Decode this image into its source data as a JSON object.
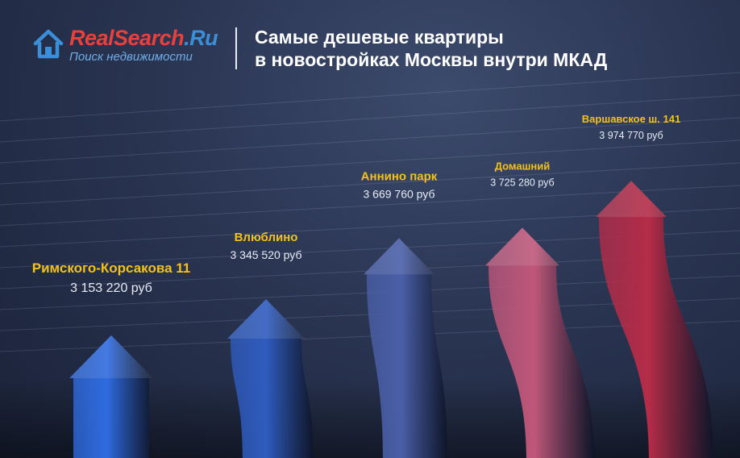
{
  "brand": {
    "name_part1": "RealSearch",
    "name_part2": ".Ru",
    "tagline": "Поиск недвижимости",
    "icon": "house-icon"
  },
  "header": {
    "title_line1": "Самые дешевые квартиры",
    "title_line2": "в новостройках Москвы внутри МКАД"
  },
  "chart_data": {
    "type": "bar",
    "title": "Самые дешевые квартиры в новостройках Москвы внутри МКАД",
    "categories": [
      "Римского-Корсакова 11",
      "Влюблино",
      "Аннино парк",
      "Домашний",
      "Варшавское ш. 141"
    ],
    "values": [
      3153220,
      3345520,
      3669760,
      3725280,
      3974770
    ],
    "value_labels": [
      "3 153 220 руб",
      "3 345 520 руб",
      "3 669 760 руб",
      "3 725 280 руб",
      "3 974 770 руб"
    ],
    "colors": [
      "#2f6be0",
      "#2f5cbf",
      "#4a5fa8",
      "#c0577a",
      "#b52c48"
    ],
    "label_color": "#f2c21b",
    "value_color": "#e6ebf5",
    "grid": true,
    "legend": "none"
  }
}
